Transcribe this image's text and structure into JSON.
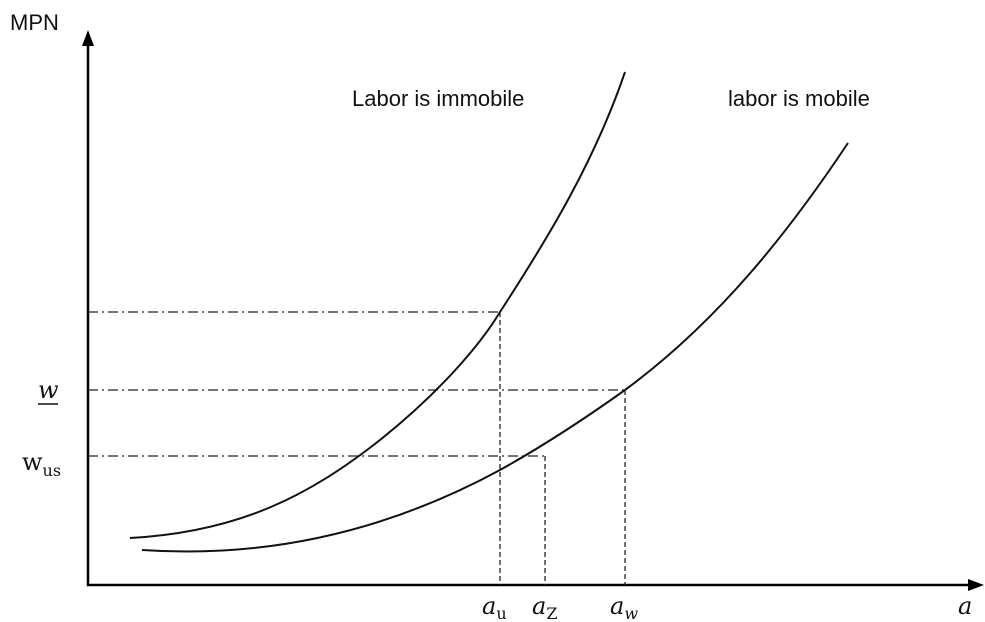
{
  "axes": {
    "y_label": "MPN",
    "x_label": "a"
  },
  "curves": [
    {
      "label": "Labor is immobile"
    },
    {
      "label": "labor is mobile"
    }
  ],
  "y_labels": [
    {
      "main": "w"
    },
    {
      "main": "w",
      "sub": "us"
    }
  ],
  "x_labels": [
    {
      "main": "a",
      "sub": "u"
    },
    {
      "main": "a",
      "sub": "Z"
    },
    {
      "main": "a",
      "sub": "w"
    }
  ]
}
